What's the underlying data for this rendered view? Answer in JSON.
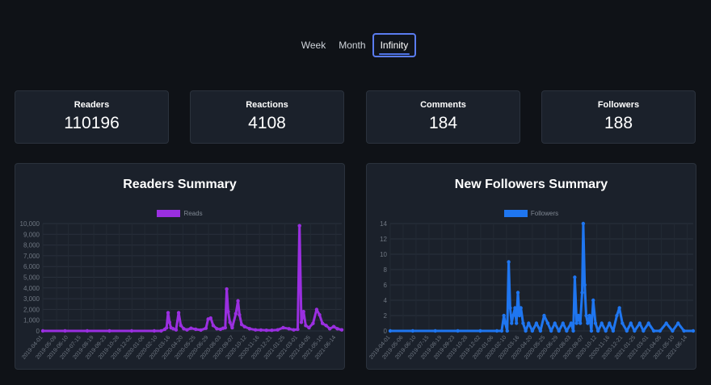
{
  "tabs": [
    {
      "label": "Week",
      "active": false
    },
    {
      "label": "Month",
      "active": false
    },
    {
      "label": "Infinity",
      "active": true
    }
  ],
  "stats": [
    {
      "label": "Readers",
      "value": "110196"
    },
    {
      "label": "Reactions",
      "value": "4108"
    },
    {
      "label": "Comments",
      "value": "184"
    },
    {
      "label": "Followers",
      "value": "188"
    }
  ],
  "colors": {
    "background": "#0f1217",
    "card": "#1b212b",
    "reads": "#9a2fe0",
    "followers": "#1f76f0",
    "tab_active_border": "#5a7cf0"
  },
  "chart_data": [
    {
      "type": "line",
      "title": "Readers Summary",
      "legend_position": "top",
      "grid": true,
      "series": [
        {
          "name": "Reads",
          "color": "#9a2fe0"
        }
      ],
      "ylim": [
        0,
        10000
      ],
      "yticks": [
        "0",
        "1,000",
        "2,000",
        "3,000",
        "4,000",
        "5,000",
        "6,000",
        "7,000",
        "8,000",
        "9,000",
        "10,000"
      ],
      "xticks": [
        "2019-04-01",
        "2019-05-09",
        "2019-06-10",
        "2019-07-15",
        "2019-08-19",
        "2019-09-23",
        "2019-10-28",
        "2019-12-02",
        "2020-01-06",
        "2020-02-10",
        "2020-03-16",
        "2020-04-20",
        "2020-05-25",
        "2020-06-29",
        "2020-08-03",
        "2020-09-07",
        "2020-10-12",
        "2020-11-16",
        "2020-12-21",
        "2021-01-25",
        "2021-03-01",
        "2021-04-05",
        "2021-05-10",
        "2021-06-14"
      ],
      "xrange": [
        "2019-04-01",
        "2021-06-30"
      ],
      "points": [
        [
          "2019-04-01",
          0
        ],
        [
          "2019-06-01",
          0
        ],
        [
          "2019-08-01",
          0
        ],
        [
          "2019-10-01",
          0
        ],
        [
          "2019-12-01",
          0
        ],
        [
          "2020-02-01",
          0
        ],
        [
          "2020-02-20",
          0
        ],
        [
          "2020-03-01",
          150
        ],
        [
          "2020-03-06",
          300
        ],
        [
          "2020-03-10",
          1700
        ],
        [
          "2020-03-14",
          800
        ],
        [
          "2020-03-18",
          300
        ],
        [
          "2020-03-24",
          200
        ],
        [
          "2020-04-01",
          100
        ],
        [
          "2020-04-08",
          1700
        ],
        [
          "2020-04-14",
          500
        ],
        [
          "2020-04-22",
          200
        ],
        [
          "2020-05-01",
          100
        ],
        [
          "2020-05-12",
          250
        ],
        [
          "2020-05-25",
          150
        ],
        [
          "2020-06-08",
          80
        ],
        [
          "2020-06-22",
          250
        ],
        [
          "2020-06-28",
          1100
        ],
        [
          "2020-07-05",
          1200
        ],
        [
          "2020-07-12",
          500
        ],
        [
          "2020-07-22",
          200
        ],
        [
          "2020-08-01",
          150
        ],
        [
          "2020-08-08",
          250
        ],
        [
          "2020-08-14",
          300
        ],
        [
          "2020-08-18",
          3900
        ],
        [
          "2020-08-22",
          1800
        ],
        [
          "2020-08-27",
          800
        ],
        [
          "2020-09-02",
          300
        ],
        [
          "2020-09-12",
          1600
        ],
        [
          "2020-09-18",
          2800
        ],
        [
          "2020-09-22",
          1500
        ],
        [
          "2020-09-28",
          600
        ],
        [
          "2020-10-06",
          400
        ],
        [
          "2020-10-20",
          200
        ],
        [
          "2020-11-05",
          100
        ],
        [
          "2020-11-20",
          80
        ],
        [
          "2020-12-05",
          60
        ],
        [
          "2020-12-20",
          60
        ],
        [
          "2021-01-05",
          100
        ],
        [
          "2021-01-20",
          300
        ],
        [
          "2021-02-05",
          200
        ],
        [
          "2021-02-18",
          100
        ],
        [
          "2021-03-01",
          150
        ],
        [
          "2021-03-06",
          9800
        ],
        [
          "2021-03-11",
          800
        ],
        [
          "2021-03-17",
          1800
        ],
        [
          "2021-03-23",
          500
        ],
        [
          "2021-04-01",
          300
        ],
        [
          "2021-04-12",
          700
        ],
        [
          "2021-04-22",
          2000
        ],
        [
          "2021-04-30",
          1500
        ],
        [
          "2021-05-08",
          700
        ],
        [
          "2021-05-18",
          500
        ],
        [
          "2021-05-28",
          200
        ],
        [
          "2021-06-08",
          400
        ],
        [
          "2021-06-18",
          200
        ],
        [
          "2021-06-30",
          100
        ]
      ]
    },
    {
      "type": "line",
      "title": "New Followers Summary",
      "legend_position": "top",
      "grid": true,
      "series": [
        {
          "name": "Followers",
          "color": "#1f76f0"
        }
      ],
      "ylim": [
        0,
        14
      ],
      "yticks": [
        "0",
        "2",
        "4",
        "6",
        "8",
        "10",
        "12",
        "14"
      ],
      "xticks": [
        "2019-04-01",
        "2019-05-06",
        "2019-06-10",
        "2019-07-15",
        "2019-08-19",
        "2019-09-23",
        "2019-10-28",
        "2019-12-02",
        "2020-01-06",
        "2020-02-10",
        "2020-03-16",
        "2020-04-20",
        "2020-05-25",
        "2020-06-29",
        "2020-08-03",
        "2020-09-07",
        "2020-10-12",
        "2020-11-16",
        "2020-12-21",
        "2021-01-25",
        "2021-03-01",
        "2021-04-05",
        "2021-05-10",
        "2021-06-14"
      ],
      "xrange": [
        "2019-04-01",
        "2021-06-30"
      ],
      "points": [
        [
          "2019-04-01",
          0
        ],
        [
          "2019-06-01",
          0
        ],
        [
          "2019-08-01",
          0
        ],
        [
          "2019-10-01",
          0
        ],
        [
          "2019-12-01",
          0
        ],
        [
          "2020-01-15",
          0
        ],
        [
          "2020-01-28",
          0
        ],
        [
          "2020-02-03",
          2
        ],
        [
          "2020-02-07",
          1
        ],
        [
          "2020-02-12",
          0
        ],
        [
          "2020-02-16",
          9
        ],
        [
          "2020-02-20",
          3
        ],
        [
          "2020-02-24",
          1
        ],
        [
          "2020-02-28",
          2
        ],
        [
          "2020-03-04",
          3
        ],
        [
          "2020-03-08",
          1
        ],
        [
          "2020-03-12",
          5
        ],
        [
          "2020-03-16",
          2
        ],
        [
          "2020-03-20",
          3
        ],
        [
          "2020-03-26",
          1
        ],
        [
          "2020-04-02",
          0
        ],
        [
          "2020-04-10",
          1
        ],
        [
          "2020-04-20",
          0
        ],
        [
          "2020-05-01",
          1
        ],
        [
          "2020-05-12",
          0
        ],
        [
          "2020-05-22",
          2
        ],
        [
          "2020-06-01",
          1
        ],
        [
          "2020-06-10",
          0
        ],
        [
          "2020-06-20",
          1
        ],
        [
          "2020-07-01",
          0
        ],
        [
          "2020-07-12",
          1
        ],
        [
          "2020-07-22",
          0
        ],
        [
          "2020-08-03",
          1
        ],
        [
          "2020-08-09",
          0
        ],
        [
          "2020-08-13",
          7
        ],
        [
          "2020-08-18",
          1
        ],
        [
          "2020-08-23",
          2
        ],
        [
          "2020-08-28",
          1
        ],
        [
          "2020-09-02",
          5
        ],
        [
          "2020-09-05",
          14
        ],
        [
          "2020-09-09",
          6
        ],
        [
          "2020-09-13",
          2
        ],
        [
          "2020-09-17",
          1
        ],
        [
          "2020-09-22",
          2
        ],
        [
          "2020-09-27",
          0
        ],
        [
          "2020-10-02",
          4
        ],
        [
          "2020-10-08",
          1
        ],
        [
          "2020-10-15",
          0
        ],
        [
          "2020-10-25",
          1
        ],
        [
          "2020-11-05",
          0
        ],
        [
          "2020-11-15",
          1
        ],
        [
          "2020-11-25",
          0
        ],
        [
          "2020-12-05",
          2
        ],
        [
          "2020-12-12",
          3
        ],
        [
          "2020-12-20",
          1
        ],
        [
          "2021-01-01",
          0
        ],
        [
          "2021-01-12",
          1
        ],
        [
          "2021-01-22",
          0
        ],
        [
          "2021-02-05",
          1
        ],
        [
          "2021-02-15",
          0
        ],
        [
          "2021-03-01",
          1
        ],
        [
          "2021-03-15",
          0
        ],
        [
          "2021-04-01",
          0
        ],
        [
          "2021-04-18",
          1
        ],
        [
          "2021-05-05",
          0
        ],
        [
          "2021-05-20",
          1
        ],
        [
          "2021-06-05",
          0
        ],
        [
          "2021-06-30",
          0
        ]
      ]
    }
  ]
}
